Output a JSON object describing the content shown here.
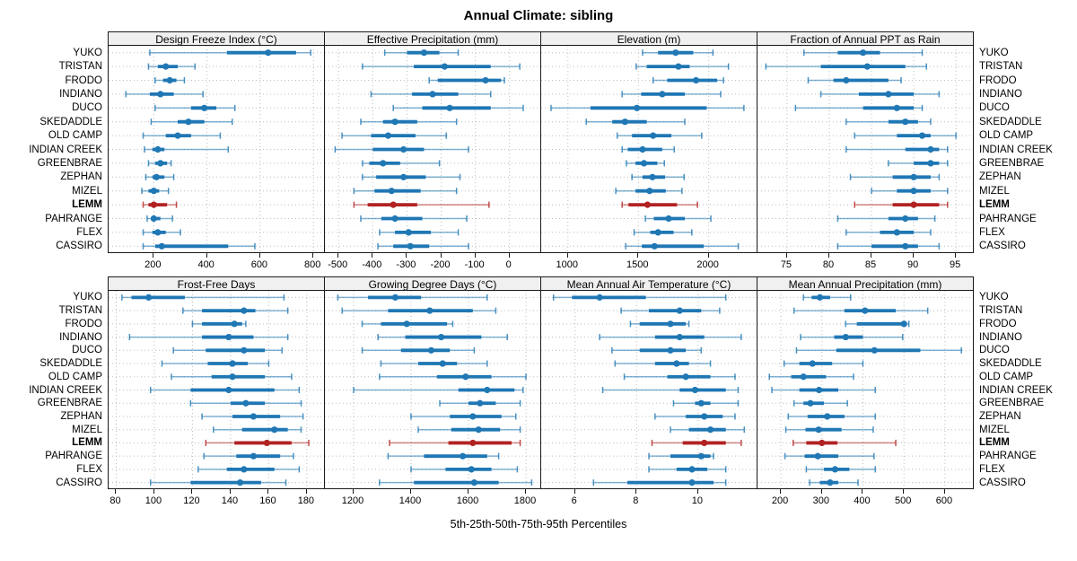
{
  "chart_data": {
    "type": "dot-interval-lattice",
    "title": "Annual Climate: sibling",
    "caption": "5th-25th-50th-75th-95th Percentiles",
    "percentile_labels": [
      "5th",
      "25th",
      "50th",
      "75th",
      "95th"
    ],
    "sites": [
      "YUKO",
      "TRISTAN",
      "FRODO",
      "INDIANO",
      "DUCO",
      "SKEDADDLE",
      "OLD CAMP",
      "INDIAN CREEK",
      "GREENBRAE",
      "ZEPHAN",
      "MIZEL",
      "LEMM",
      "PAHRANGE",
      "FLEX",
      "CASSIRO"
    ],
    "highlight_site": "LEMM",
    "colors": {
      "normal": "#1f77b4",
      "highlight": "#b22222",
      "grid": "#bdbdbd",
      "border": "#1a1a1a",
      "strip_bg": "#f0f0f0"
    },
    "layout": {
      "grid": "2 rows x 4 cols",
      "gridlines": "dotted",
      "legend": "none"
    },
    "panels": [
      {
        "title": "Design Freeze Index (°C)",
        "xlim": [
          30,
          840
        ],
        "ticks": [
          200,
          400,
          600,
          800
        ],
        "values": {
          "YUKO": [
            185,
            475,
            630,
            735,
            790
          ],
          "TRISTAN": [
            180,
            215,
            245,
            290,
            355
          ],
          "FRODO": [
            205,
            235,
            260,
            285,
            315
          ],
          "INDIANO": [
            95,
            185,
            225,
            275,
            385
          ],
          "DUCO": [
            205,
            340,
            390,
            435,
            505
          ],
          "SKEDADDLE": [
            190,
            290,
            330,
            390,
            495
          ],
          "OLD CAMP": [
            160,
            245,
            290,
            340,
            450
          ],
          "INDIAN CREEK": [
            165,
            195,
            215,
            240,
            480
          ],
          "GREENBRAE": [
            180,
            205,
            225,
            250,
            265
          ],
          "ZEPHAN": [
            170,
            195,
            210,
            240,
            275
          ],
          "MIZEL": [
            155,
            180,
            200,
            220,
            255
          ],
          "LEMM": [
            160,
            180,
            200,
            250,
            285
          ],
          "PAHRANGE": [
            175,
            190,
            200,
            225,
            270
          ],
          "FLEX": [
            160,
            195,
            215,
            245,
            300
          ],
          "CASSIRO": [
            160,
            205,
            230,
            480,
            580
          ]
        }
      },
      {
        "title": "Effective Precipitation (mm)",
        "xlim": [
          -540,
          90
        ],
        "ticks": [
          -500,
          -400,
          -300,
          -200,
          -100,
          0
        ],
        "values": {
          "YUKO": [
            -365,
            -300,
            -250,
            -205,
            -150
          ],
          "TRISTAN": [
            -430,
            -280,
            -190,
            -55,
            30
          ],
          "FRODO": [
            -235,
            -210,
            -70,
            -25,
            -15
          ],
          "INDIANO": [
            -405,
            -285,
            -225,
            -150,
            -55
          ],
          "DUCO": [
            -340,
            -255,
            -175,
            -55,
            40
          ],
          "SKEDADDLE": [
            -435,
            -370,
            -335,
            -270,
            -155
          ],
          "OLD CAMP": [
            -490,
            -405,
            -355,
            -275,
            -185
          ],
          "INDIAN CREEK": [
            -510,
            -400,
            -310,
            -250,
            -120
          ],
          "GREENBRAE": [
            -430,
            -410,
            -370,
            -320,
            -205
          ],
          "ZEPHAN": [
            -430,
            -390,
            -310,
            -245,
            -145
          ],
          "MIZEL": [
            -455,
            -395,
            -345,
            -260,
            -155
          ],
          "LEMM": [
            -455,
            -415,
            -340,
            -270,
            -60
          ],
          "PAHRANGE": [
            -435,
            -375,
            -335,
            -255,
            -125
          ],
          "FLEX": [
            -380,
            -335,
            -295,
            -230,
            -150
          ],
          "CASSIRO": [
            -385,
            -340,
            -290,
            -235,
            -120
          ]
        }
      },
      {
        "title": "Elevation (m)",
        "xlim": [
          810,
          2340
        ],
        "ticks": [
          1000,
          1500,
          2000
        ],
        "values": {
          "YUKO": [
            1530,
            1640,
            1765,
            1890,
            2030
          ],
          "TRISTAN": [
            1485,
            1560,
            1785,
            1865,
            2140
          ],
          "FRODO": [
            1605,
            1705,
            1910,
            2060,
            2105
          ],
          "INDIANO": [
            1385,
            1520,
            1670,
            1830,
            2085
          ],
          "DUCO": [
            880,
            1160,
            1490,
            1985,
            2250
          ],
          "SKEDADDLE": [
            1130,
            1315,
            1405,
            1560,
            1830
          ],
          "OLD CAMP": [
            1350,
            1455,
            1605,
            1735,
            1950
          ],
          "INDIAN CREEK": [
            1385,
            1425,
            1530,
            1670,
            1755
          ],
          "GREENBRAE": [
            1415,
            1480,
            1540,
            1635,
            1685
          ],
          "ZEPHAN": [
            1455,
            1530,
            1600,
            1690,
            1825
          ],
          "MIZEL": [
            1340,
            1480,
            1580,
            1695,
            1810
          ],
          "LEMM": [
            1385,
            1430,
            1565,
            1775,
            1920
          ],
          "PAHRANGE": [
            1550,
            1610,
            1715,
            1830,
            2015
          ],
          "FLEX": [
            1470,
            1585,
            1640,
            1750,
            1880
          ],
          "CASSIRO": [
            1410,
            1525,
            1615,
            1965,
            2210
          ]
        }
      },
      {
        "title": "Fraction of Annual PPT as Rain",
        "xlim": [
          71.5,
          97
        ],
        "ticks": [
          75,
          80,
          85,
          90,
          95
        ],
        "values": {
          "YUKO": [
            77,
            81,
            84,
            86,
            91
          ],
          "TRISTAN": [
            72.5,
            79,
            84.5,
            89,
            91.5
          ],
          "FRODO": [
            77.5,
            80.5,
            82,
            87,
            88.5
          ],
          "INDIANO": [
            79,
            83.5,
            87,
            90,
            93
          ],
          "DUCO": [
            76,
            84,
            88,
            90,
            91
          ],
          "SKEDADDLE": [
            82,
            87,
            89,
            90.5,
            92
          ],
          "OLD CAMP": [
            83,
            88,
            91,
            92,
            95
          ],
          "INDIAN CREEK": [
            82,
            89,
            92,
            93,
            94
          ],
          "GREENBRAE": [
            87,
            90,
            92,
            93,
            94
          ],
          "ZEPHAN": [
            82.5,
            87.5,
            90,
            92,
            93
          ],
          "MIZEL": [
            85,
            88,
            90,
            92,
            94
          ],
          "LEMM": [
            83,
            87.5,
            90,
            93,
            94
          ],
          "PAHRANGE": [
            81,
            87,
            89,
            90.5,
            92.5
          ],
          "FLEX": [
            82,
            86,
            88,
            90,
            92
          ],
          "CASSIRO": [
            81,
            85,
            89,
            90.5,
            93
          ]
        }
      },
      {
        "title": "Frost-Free Days",
        "xlim": [
          76,
          189
        ],
        "ticks": [
          80,
          100,
          120,
          140,
          160,
          180
        ],
        "values": {
          "YUKO": [
            83,
            88,
            97,
            116,
            168
          ],
          "TRISTAN": [
            115,
            125,
            147,
            153,
            170
          ],
          "FRODO": [
            120,
            125,
            142,
            146,
            148
          ],
          "INDIANO": [
            87,
            125,
            139,
            152,
            170
          ],
          "DUCO": [
            110,
            127,
            147,
            158,
            167
          ],
          "SKEDADDLE": [
            104,
            128,
            141,
            149,
            160
          ],
          "OLD CAMP": [
            109,
            130,
            141,
            158,
            172
          ],
          "INDIAN CREEK": [
            98,
            119,
            139,
            163,
            176
          ],
          "GREENBRAE": [
            119,
            140,
            148,
            158,
            177
          ],
          "ZEPHAN": [
            125,
            141,
            152,
            166,
            178
          ],
          "MIZEL": [
            131,
            146,
            163,
            170,
            177
          ],
          "LEMM": [
            127,
            142,
            159,
            172,
            181
          ],
          "PAHRANGE": [
            126,
            143,
            152,
            166,
            173
          ],
          "FLEX": [
            123,
            138,
            147,
            163,
            176
          ],
          "CASSIRO": [
            98,
            119,
            145,
            156,
            169
          ]
        }
      },
      {
        "title": "Growing Degree Days (°C)",
        "xlim": [
          1100,
          1850
        ],
        "ticks": [
          1200,
          1400,
          1600,
          1800
        ],
        "values": {
          "YUKO": [
            1145,
            1250,
            1345,
            1435,
            1665
          ],
          "TRISTAN": [
            1160,
            1320,
            1465,
            1615,
            1695
          ],
          "FRODO": [
            1230,
            1295,
            1385,
            1525,
            1545
          ],
          "INDIANO": [
            1285,
            1380,
            1505,
            1645,
            1735
          ],
          "DUCO": [
            1230,
            1365,
            1470,
            1535,
            1620
          ],
          "SKEDADDLE": [
            1295,
            1425,
            1510,
            1560,
            1665
          ],
          "OLD CAMP": [
            1290,
            1490,
            1590,
            1680,
            1800
          ],
          "INDIAN CREEK": [
            1200,
            1565,
            1665,
            1760,
            1790
          ],
          "GREENBRAE": [
            1500,
            1600,
            1640,
            1695,
            1780
          ],
          "ZEPHAN": [
            1400,
            1535,
            1615,
            1715,
            1765
          ],
          "MIZEL": [
            1425,
            1540,
            1635,
            1710,
            1780
          ],
          "LEMM": [
            1325,
            1530,
            1615,
            1750,
            1780
          ],
          "PAHRANGE": [
            1320,
            1445,
            1580,
            1665,
            1705
          ],
          "FLEX": [
            1400,
            1520,
            1610,
            1680,
            1770
          ],
          "CASSIRO": [
            1290,
            1410,
            1620,
            1705,
            1820
          ]
        }
      },
      {
        "title": "Mean Annual Air Temperature (°C)",
        "xlim": [
          4.9,
          11.9
        ],
        "ticks": [
          6,
          8,
          10
        ],
        "values": {
          "YUKO": [
            5.3,
            5.9,
            6.8,
            8.3,
            10.9
          ],
          "TRISTAN": [
            7.5,
            8.4,
            9.4,
            10.1,
            10.7
          ],
          "FRODO": [
            7.8,
            8.1,
            9.1,
            9.6,
            9.7
          ],
          "INDIANO": [
            6.8,
            8.6,
            9.4,
            10.2,
            11.4
          ],
          "DUCO": [
            7.2,
            8.1,
            9.1,
            9.6,
            10.1
          ],
          "SKEDADDLE": [
            7.3,
            8.6,
            9.3,
            9.7,
            10.4
          ],
          "OLD CAMP": [
            7.6,
            9.0,
            9.6,
            10.4,
            11.2
          ],
          "INDIAN CREEK": [
            6.9,
            9.4,
            9.9,
            10.9,
            11.3
          ],
          "GREENBRAE": [
            9.2,
            9.9,
            10.1,
            10.4,
            11.3
          ],
          "ZEPHAN": [
            8.6,
            9.6,
            10.2,
            10.8,
            11.2
          ],
          "MIZEL": [
            9.1,
            9.7,
            10.4,
            10.9,
            11.5
          ],
          "LEMM": [
            8.5,
            9.5,
            10.2,
            10.9,
            11.4
          ],
          "PAHRANGE": [
            8.4,
            9.1,
            10.1,
            10.4,
            10.5
          ],
          "FLEX": [
            8.4,
            9.3,
            9.8,
            10.3,
            10.9
          ],
          "CASSIRO": [
            6.6,
            7.7,
            9.8,
            10.5,
            10.9
          ]
        }
      },
      {
        "title": "Mean Annual Precipitation (mm)",
        "xlim": [
          143,
          668
        ],
        "ticks": [
          200,
          300,
          400,
          500,
          600
        ],
        "values": {
          "YUKO": [
            255,
            275,
            295,
            320,
            370
          ],
          "TRISTAN": [
            232,
            355,
            405,
            480,
            558
          ],
          "FRODO": [
            358,
            385,
            500,
            507,
            512
          ],
          "INDIANO": [
            248,
            330,
            358,
            400,
            497
          ],
          "DUCO": [
            238,
            335,
            428,
            540,
            640
          ],
          "SKEDADDLE": [
            208,
            245,
            277,
            325,
            400
          ],
          "OLD CAMP": [
            172,
            225,
            255,
            310,
            377
          ],
          "INDIAN CREEK": [
            178,
            245,
            293,
            340,
            430
          ],
          "GREENBRAE": [
            232,
            255,
            272,
            305,
            362
          ],
          "ZEPHAN": [
            218,
            265,
            313,
            355,
            430
          ],
          "MIZEL": [
            212,
            260,
            292,
            348,
            425
          ],
          "LEMM": [
            230,
            262,
            300,
            338,
            480
          ],
          "PAHRANGE": [
            210,
            258,
            290,
            340,
            427
          ],
          "FLEX": [
            262,
            305,
            332,
            367,
            430
          ],
          "CASSIRO": [
            270,
            295,
            320,
            340,
            388
          ]
        }
      }
    ]
  }
}
